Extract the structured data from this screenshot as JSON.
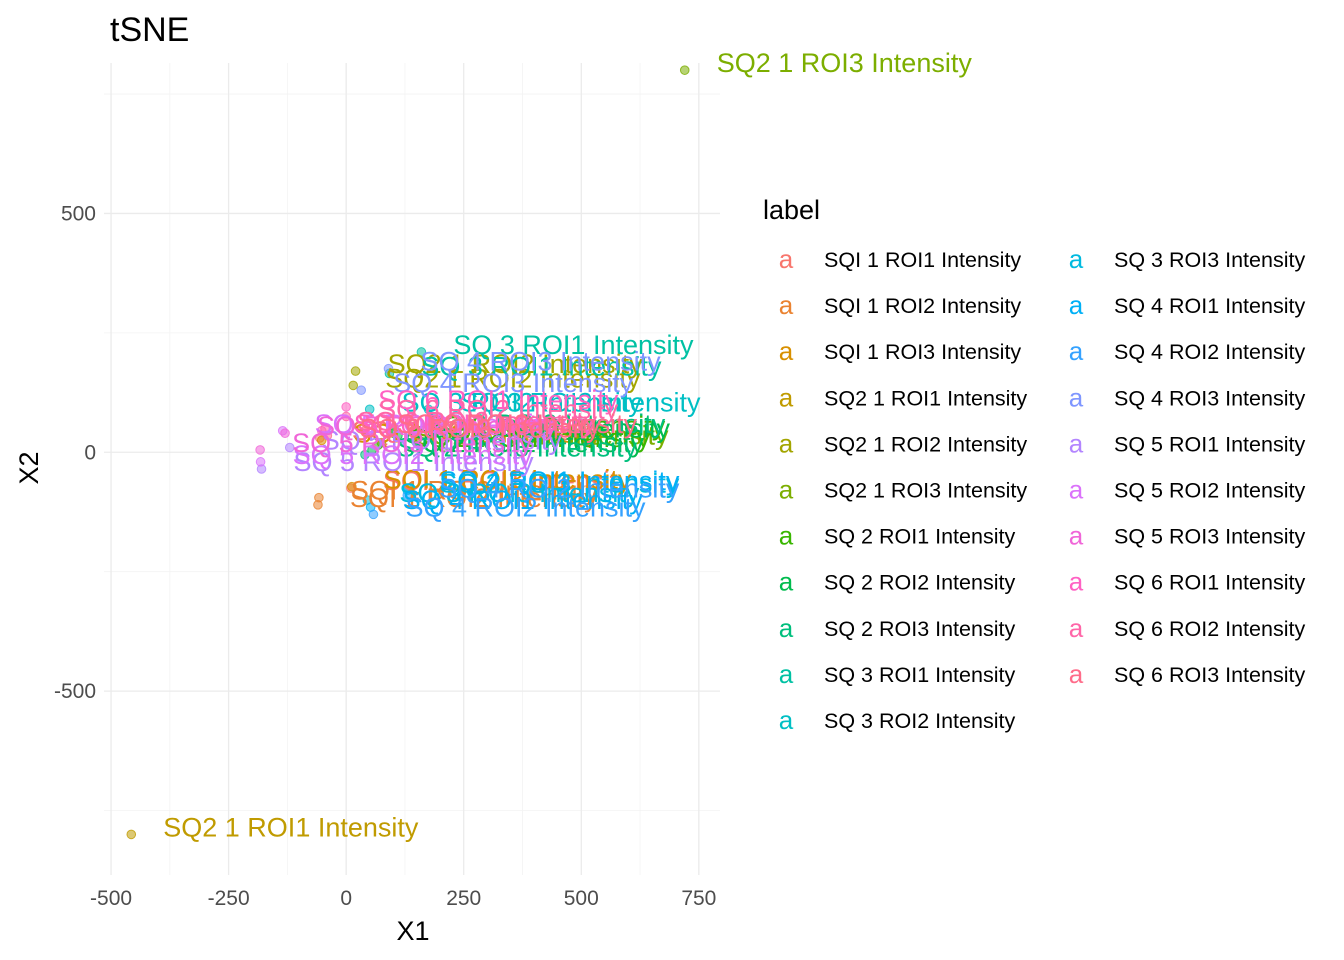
{
  "colors": {
    "SQI 1 ROI1 Intensity": "#F8766D",
    "SQI 1 ROI2 Intensity": "#EA8331",
    "SQI 1 ROI3 Intensity": "#D89000",
    "SQ2 1 ROI1 Intensity": "#C09B00",
    "SQ2 1 ROI2 Intensity": "#A3A500",
    "SQ2 1 ROI3 Intensity": "#7CAE00",
    "SQ 2 ROI1 Intensity": "#39B600",
    "SQ 2 ROI2 Intensity": "#00BB4E",
    "SQ 2 ROI3 Intensity": "#00BF7D",
    "SQ 3 ROI1 Intensity": "#00C1A3",
    "SQ 3 ROI2 Intensity": "#00BFC4",
    "SQ 3 ROI3 Intensity": "#00BAE0",
    "SQ 4 ROI1 Intensity": "#00B0F6",
    "SQ 4 ROI2 Intensity": "#35A2FF",
    "SQ 4 ROI3 Intensity": "#7F96FF",
    "SQ 5 ROI1 Intensity": "#B385FF",
    "SQ 5 ROI2 Intensity": "#DB72FB",
    "SQ 5 ROI3 Intensity": "#F066D8",
    "SQ 6 ROI1 Intensity": "#FF61C3",
    "SQ 6 ROI2 Intensity": "#FF66A8",
    "SQ 6 ROI3 Intensity": "#FF6C8A"
  },
  "chart_data": {
    "type": "scatter",
    "title": "tSNE",
    "xlabel": "X1",
    "ylabel": "X2",
    "xlim": [
      -515,
      795
    ],
    "ylim": [
      -885,
      815
    ],
    "xticks": [
      -500,
      -250,
      0,
      250,
      500,
      750
    ],
    "xtick_labels": [
      "-500",
      "-250",
      "0",
      "250",
      "500",
      "750"
    ],
    "yticks": [
      -500,
      0,
      500
    ],
    "ytick_labels": [
      "-500",
      "0",
      "500"
    ],
    "grid": true,
    "legend_title": "label",
    "legend_position": "right",
    "legend_key_glyph": "a",
    "legend": [
      "SQI 1 ROI1 Intensity",
      "SQI 1 ROI2 Intensity",
      "SQI 1 ROI3 Intensity",
      "SQ2 1 ROI1 Intensity",
      "SQ2 1 ROI2 Intensity",
      "SQ2 1 ROI3 Intensity",
      "SQ 2 ROI1 Intensity",
      "SQ 2 ROI2 Intensity",
      "SQ 2 ROI3 Intensity",
      "SQ 3 ROI1 Intensity",
      "SQ 3 ROI2 Intensity",
      "SQ 3 ROI3 Intensity",
      "SQ 4 ROI1 Intensity",
      "SQ 4 ROI2 Intensity",
      "SQ 4 ROI3 Intensity",
      "SQ 5 ROI1 Intensity",
      "SQ 5 ROI2 Intensity",
      "SQ 5 ROI3 Intensity",
      "SQ 6 ROI1 Intensity",
      "SQ 6 ROI2 Intensity",
      "SQ 6 ROI3 Intensity"
    ],
    "points": [
      {
        "label": "SQI 1 ROI1 Intensity",
        "x": -56,
        "y": 30
      },
      {
        "label": "SQI 1 ROI1 Intensity",
        "x": 10,
        "y": -75
      },
      {
        "label": "SQI 1 ROI2 Intensity",
        "x": -58,
        "y": -95
      },
      {
        "label": "SQI 1 ROI2 Intensity",
        "x": -60,
        "y": -110
      },
      {
        "label": "SQI 1 ROI3 Intensity",
        "x": -52,
        "y": 25
      },
      {
        "label": "SQI 1 ROI3 Intensity",
        "x": 12,
        "y": -72
      },
      {
        "label": "SQ2 1 ROI1 Intensity",
        "x": -457,
        "y": -800
      },
      {
        "label": "SQ2 1 ROI2 Intensity",
        "x": 15,
        "y": 140
      },
      {
        "label": "SQ2 1 ROI2 Intensity",
        "x": 20,
        "y": 170
      },
      {
        "label": "SQ2 1 ROI3 Intensity",
        "x": 720,
        "y": 800
      },
      {
        "label": "SQ2 1 ROI3 Intensity",
        "x": 75,
        "y": 20
      },
      {
        "label": "SQ 2 ROI1 Intensity",
        "x": 68,
        "y": 15
      },
      {
        "label": "SQ 2 ROI1 Intensity",
        "x": 100,
        "y": 40
      },
      {
        "label": "SQ 2 ROI2 Intensity",
        "x": 55,
        "y": 5
      },
      {
        "label": "SQ 2 ROI2 Intensity",
        "x": 110,
        "y": 35
      },
      {
        "label": "SQ 2 ROI3 Intensity",
        "x": 40,
        "y": -5
      },
      {
        "label": "SQ 2 ROI3 Intensity",
        "x": 100,
        "y": 45
      },
      {
        "label": "SQ 3 ROI1 Intensity",
        "x": 92,
        "y": 165
      },
      {
        "label": "SQ 3 ROI1 Intensity",
        "x": 160,
        "y": 210
      },
      {
        "label": "SQ 3 ROI2 Intensity",
        "x": 50,
        "y": 90
      },
      {
        "label": "SQ 3 ROI2 Intensity",
        "x": 175,
        "y": 90
      },
      {
        "label": "SQ 3 ROI3 Intensity",
        "x": 45,
        "y": -100
      },
      {
        "label": "SQ 3 ROI3 Intensity",
        "x": 130,
        "y": -80
      },
      {
        "label": "SQ 4 ROI1 Intensity",
        "x": 52,
        "y": -115
      },
      {
        "label": "SQ 4 ROI1 Intensity",
        "x": 130,
        "y": -75
      },
      {
        "label": "SQ 4 ROI2 Intensity",
        "x": 58,
        "y": -130
      },
      {
        "label": "SQ 4 ROI2 Intensity",
        "x": 130,
        "y": -90
      },
      {
        "label": "SQ 4 ROI3 Intensity",
        "x": 32,
        "y": 130
      },
      {
        "label": "SQ 4 ROI3 Intensity",
        "x": 90,
        "y": 175
      },
      {
        "label": "SQ 5 ROI1 Intensity",
        "x": -180,
        "y": -35
      },
      {
        "label": "SQ 5 ROI1 Intensity",
        "x": -120,
        "y": 10
      },
      {
        "label": "SQ 5 ROI2 Intensity",
        "x": -182,
        "y": -20
      },
      {
        "label": "SQ 5 ROI2 Intensity",
        "x": -135,
        "y": 45
      },
      {
        "label": "SQ 5 ROI3 Intensity",
        "x": -183,
        "y": 5
      },
      {
        "label": "SQ 5 ROI3 Intensity",
        "x": -130,
        "y": 40
      },
      {
        "label": "SQ 6 ROI1 Intensity",
        "x": -52,
        "y": 45
      },
      {
        "label": "SQ 6 ROI1 Intensity",
        "x": 0,
        "y": 95
      },
      {
        "label": "SQ 6 ROI2 Intensity",
        "x": -45,
        "y": 50
      },
      {
        "label": "SQ 6 ROI2 Intensity",
        "x": 0,
        "y": 75
      },
      {
        "label": "SQ 6 ROI3 Intensity",
        "x": -40,
        "y": 35
      },
      {
        "label": "SQ 6 ROI3 Intensity",
        "x": 40,
        "y": 45
      }
    ]
  }
}
